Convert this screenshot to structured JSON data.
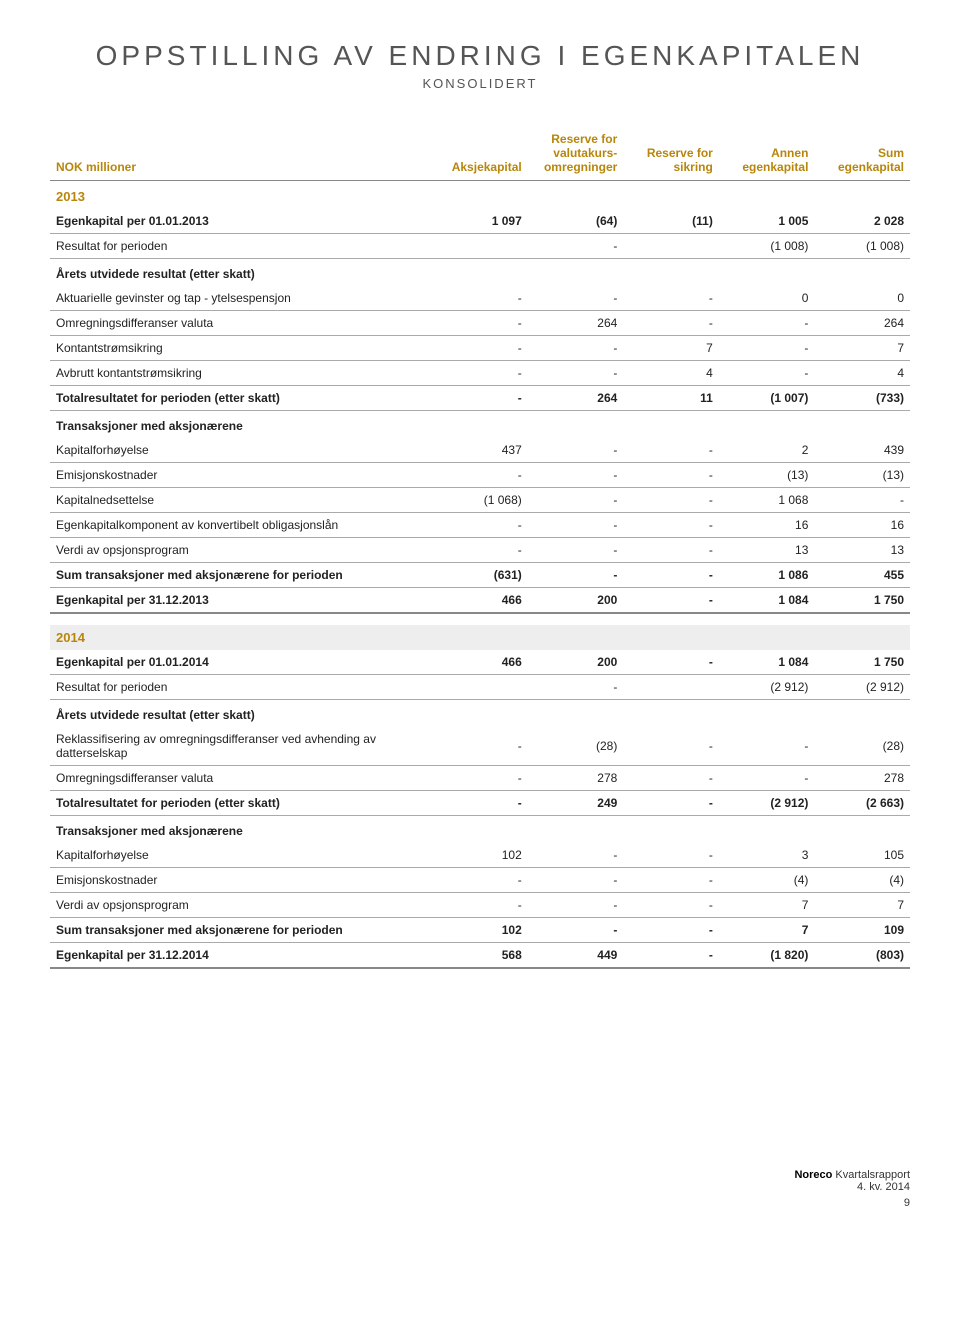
{
  "title": "OPPSTILLING AV ENDRING I EGENKAPITALEN",
  "subtitle": "KONSOLIDERT",
  "columns": {
    "c0": "NOK millioner",
    "c1": "Aksjekapital",
    "c2": "Reserve for valutakurs-omregninger",
    "c3": "Reserve for sikring",
    "c4": "Annen egenkapital",
    "c5": "Sum egenkapital"
  },
  "year2013Label": "2013",
  "y2013": {
    "open": {
      "label": "Egenkapital per 01.01.2013",
      "v": [
        "1 097",
        "(64)",
        "(11)",
        "1 005",
        "2 028"
      ]
    },
    "result": {
      "label": "Resultat for perioden",
      "v": [
        "",
        "-",
        "",
        "(1 008)",
        "(1 008)"
      ]
    },
    "sect1": {
      "label": "Årets utvidede resultat (etter skatt)"
    },
    "akt": {
      "label": "Aktuarielle gevinster og tap - ytelsespensjon",
      "v": [
        "-",
        "-",
        "-",
        "0",
        "0"
      ]
    },
    "omreg": {
      "label": "Omregningsdifferanser valuta",
      "v": [
        "-",
        "264",
        "-",
        "-",
        "264"
      ]
    },
    "kont": {
      "label": "Kontantstrømsikring",
      "v": [
        "-",
        "-",
        "7",
        "-",
        "7"
      ]
    },
    "avbr": {
      "label": "Avbrutt kontantstrømsikring",
      "v": [
        "-",
        "-",
        "4",
        "-",
        "4"
      ]
    },
    "tot": {
      "label": "Totalresultatet for perioden (etter skatt)",
      "v": [
        "-",
        "264",
        "11",
        "(1 007)",
        "(733)"
      ]
    },
    "sect2": {
      "label": "Transaksjoner med aksjonærene"
    },
    "kapf": {
      "label": "Kapitalforhøyelse",
      "v": [
        "437",
        "-",
        "-",
        "2",
        "439"
      ]
    },
    "emis": {
      "label": "Emisjonskostnader",
      "v": [
        "-",
        "-",
        "-",
        "(13)",
        "(13)"
      ]
    },
    "kapn": {
      "label": "Kapitalnedsettelse",
      "v": [
        "(1 068)",
        "-",
        "-",
        "1 068",
        "-"
      ]
    },
    "egenk": {
      "label": "Egenkapitalkomponent av konvertibelt obligasjonslån",
      "v": [
        "-",
        "-",
        "-",
        "16",
        "16"
      ]
    },
    "verdi": {
      "label": "Verdi av opsjonsprogram",
      "v": [
        "-",
        "-",
        "-",
        "13",
        "13"
      ]
    },
    "sumtr": {
      "label": "Sum transaksjoner med aksjonærene for perioden",
      "v": [
        "(631)",
        "-",
        "-",
        "1 086",
        "455"
      ]
    },
    "close": {
      "label": "Egenkapital per 31.12.2013",
      "v": [
        "466",
        "200",
        "-",
        "1 084",
        "1 750"
      ]
    }
  },
  "year2014Label": "2014",
  "y2014": {
    "open": {
      "label": "Egenkapital per 01.01.2014",
      "v": [
        "466",
        "200",
        "-",
        "1 084",
        "1 750"
      ]
    },
    "result": {
      "label": "Resultat for perioden",
      "v": [
        "",
        "-",
        "",
        "(2 912)",
        "(2 912)"
      ]
    },
    "sect1": {
      "label": "Årets utvidede resultat (etter skatt)"
    },
    "rekl": {
      "label": "Reklassifisering av omregningsdifferanser ved avhending av datterselskap",
      "v": [
        "-",
        "(28)",
        "-",
        "-",
        "(28)"
      ]
    },
    "omreg": {
      "label": "Omregningsdifferanser valuta",
      "v": [
        "-",
        "278",
        "-",
        "-",
        "278"
      ]
    },
    "tot": {
      "label": "Totalresultatet for perioden (etter skatt)",
      "v": [
        "-",
        "249",
        "-",
        "(2 912)",
        "(2 663)"
      ]
    },
    "sect2": {
      "label": "Transaksjoner med aksjonærene"
    },
    "kapf": {
      "label": "Kapitalforhøyelse",
      "v": [
        "102",
        "-",
        "-",
        "3",
        "105"
      ]
    },
    "emis": {
      "label": "Emisjonskostnader",
      "v": [
        "-",
        "-",
        "-",
        "(4)",
        "(4)"
      ]
    },
    "verdi": {
      "label": "Verdi av opsjonsprogram",
      "v": [
        "-",
        "-",
        "-",
        "7",
        "7"
      ]
    },
    "sumtr": {
      "label": "Sum transaksjoner med aksjonærene for perioden",
      "v": [
        "102",
        "-",
        "-",
        "7",
        "109"
      ]
    },
    "close": {
      "label": "Egenkapital per 31.12.2014",
      "v": [
        "568",
        "449",
        "-",
        "(1 820)",
        "(803)"
      ]
    }
  },
  "footer": {
    "brand": "Noreco",
    "rest": "Kvartalsrapport",
    "line2": "4. kv. 2014",
    "page": "9"
  }
}
